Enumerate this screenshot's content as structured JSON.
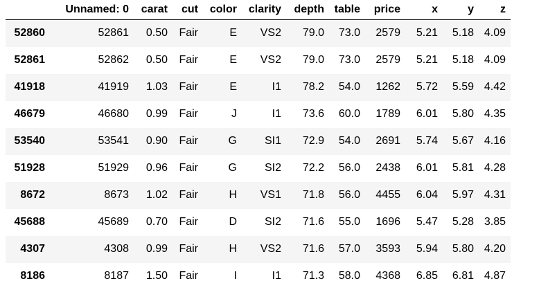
{
  "table": {
    "index_header": "",
    "columns": [
      "Unnamed: 0",
      "carat",
      "cut",
      "color",
      "clarity",
      "depth",
      "table",
      "price",
      "x",
      "y",
      "z"
    ],
    "rows": [
      {
        "index": "52860",
        "cells": [
          "52861",
          "0.50",
          "Fair",
          "E",
          "VS2",
          "79.0",
          "73.0",
          "2579",
          "5.21",
          "5.18",
          "4.09"
        ]
      },
      {
        "index": "52861",
        "cells": [
          "52862",
          "0.50",
          "Fair",
          "E",
          "VS2",
          "79.0",
          "73.0",
          "2579",
          "5.21",
          "5.18",
          "4.09"
        ]
      },
      {
        "index": "41918",
        "cells": [
          "41919",
          "1.03",
          "Fair",
          "E",
          "I1",
          "78.2",
          "54.0",
          "1262",
          "5.72",
          "5.59",
          "4.42"
        ]
      },
      {
        "index": "46679",
        "cells": [
          "46680",
          "0.99",
          "Fair",
          "J",
          "I1",
          "73.6",
          "60.0",
          "1789",
          "6.01",
          "5.80",
          "4.35"
        ]
      },
      {
        "index": "53540",
        "cells": [
          "53541",
          "0.90",
          "Fair",
          "G",
          "SI1",
          "72.9",
          "54.0",
          "2691",
          "5.74",
          "5.67",
          "4.16"
        ]
      },
      {
        "index": "51928",
        "cells": [
          "51929",
          "0.96",
          "Fair",
          "G",
          "SI2",
          "72.2",
          "56.0",
          "2438",
          "6.01",
          "5.81",
          "4.28"
        ]
      },
      {
        "index": "8672",
        "cells": [
          "8673",
          "1.02",
          "Fair",
          "H",
          "VS1",
          "71.8",
          "56.0",
          "4455",
          "6.04",
          "5.97",
          "4.31"
        ]
      },
      {
        "index": "45688",
        "cells": [
          "45689",
          "0.70",
          "Fair",
          "D",
          "SI2",
          "71.6",
          "55.0",
          "1696",
          "5.47",
          "5.28",
          "3.85"
        ]
      },
      {
        "index": "4307",
        "cells": [
          "4308",
          "0.99",
          "Fair",
          "H",
          "VS2",
          "71.6",
          "57.0",
          "3593",
          "5.94",
          "5.80",
          "4.20"
        ]
      },
      {
        "index": "8186",
        "cells": [
          "8187",
          "1.50",
          "Fair",
          "I",
          "I1",
          "71.3",
          "58.0",
          "4368",
          "6.85",
          "6.81",
          "4.87"
        ]
      }
    ]
  },
  "colors": {
    "stripe": "#f5f5f5",
    "header_rule": "#000000"
  }
}
